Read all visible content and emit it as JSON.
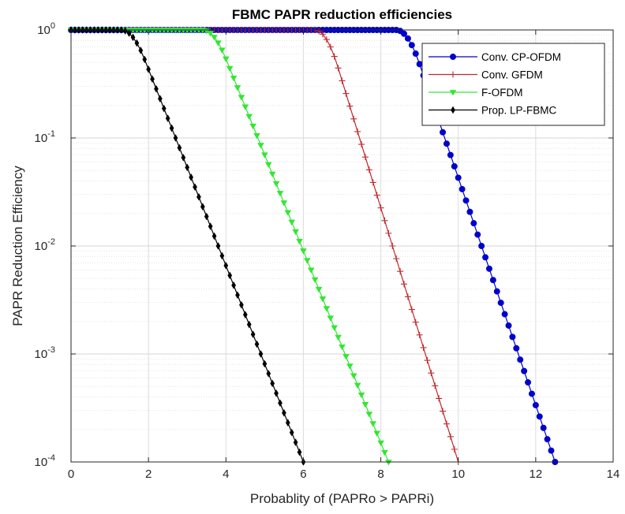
{
  "chart_data": {
    "type": "line",
    "title": "FBMC PAPR reduction efficiencies",
    "xlabel": "Probablity of (PAPRo > PAPRi)",
    "ylabel": "PAPR Reduction Efficiency",
    "xlim": [
      0,
      14
    ],
    "ylim": [
      0.0001,
      1
    ],
    "yscale": "log",
    "grid": true,
    "minor_grid": true,
    "legend_position": "top-right",
    "x_ticks": [
      "0",
      "2",
      "4",
      "6",
      "8",
      "10",
      "12",
      "14"
    ],
    "y_ticks": [
      {
        "base": "10",
        "exp": "0"
      },
      {
        "base": "10",
        "exp": "-1"
      },
      {
        "base": "10",
        "exp": "-2"
      },
      {
        "base": "10",
        "exp": "-3"
      },
      {
        "base": "10",
        "exp": "-4"
      }
    ],
    "series": [
      {
        "name": "Conv. CP-OFDM",
        "color": "#0000cc",
        "marker": "circle",
        "x_start": 0,
        "x_step": 0.1,
        "knee_x": 8.7,
        "end_x": 12.5,
        "end_y": 0.0001
      },
      {
        "name": "Conv. GFDM",
        "color": "#c0282d",
        "marker": "plus",
        "x_start": 0,
        "x_step": 0.1,
        "knee_x": 6.6,
        "end_x": 10.0,
        "end_y": 0.0001
      },
      {
        "name": "F-OFDM",
        "color": "#33e633",
        "marker": "triangle-down",
        "x_start": 0,
        "x_step": 0.1,
        "knee_x": 3.7,
        "end_x": 8.2,
        "end_y": 0.0001
      },
      {
        "name": "Prop. LP-FBMC",
        "color": "#000000",
        "marker": "diamond",
        "x_start": 0,
        "x_step": 0.1,
        "knee_x": 1.6,
        "end_x": 6.0,
        "end_y": 0.0001
      }
    ]
  }
}
